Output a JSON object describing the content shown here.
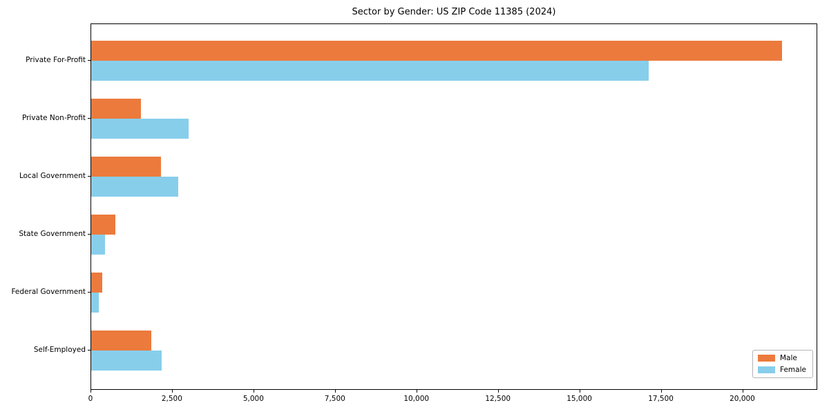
{
  "chart_data": {
    "type": "bar",
    "orientation": "horizontal",
    "title": "Sector by Gender: US ZIP Code 11385 (2024)",
    "categories": [
      "Private For-Profit",
      "Private Non-Profit",
      "Local Government",
      "State Government",
      "Federal Government",
      "Self-Employed"
    ],
    "series": [
      {
        "name": "Male",
        "color": "#ec7a3c",
        "values": [
          21200,
          1520,
          2150,
          740,
          340,
          1840
        ]
      },
      {
        "name": "Female",
        "color": "#87ceeb",
        "values": [
          17100,
          2980,
          2660,
          420,
          230,
          2170
        ]
      }
    ],
    "xlabel": "",
    "ylabel": "",
    "xlim": [
      0,
      22300
    ],
    "xticks": [
      0,
      2500,
      5000,
      7500,
      10000,
      12500,
      15000,
      17500,
      20000
    ],
    "xtick_labels": [
      "0",
      "2,500",
      "5,000",
      "7,500",
      "10,000",
      "12,500",
      "15,000",
      "17,500",
      "20,000"
    ],
    "grid": false,
    "legend": {
      "position": "lower right"
    }
  },
  "colors": {
    "male": "#ec7a3c",
    "female": "#87ceeb",
    "axis": "#000000",
    "background": "#ffffff",
    "legend_border": "#b3b3b3"
  }
}
